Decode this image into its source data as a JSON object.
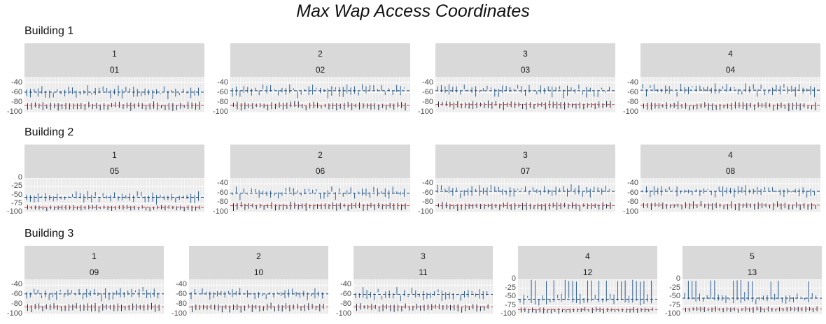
{
  "title": "Max Wap Access Coordinates",
  "colors": {
    "strip_bg": "#d9d9d9",
    "panel_bg": "#ebebeb",
    "grid": "#ffffff",
    "segment_blue": "#2c5d8f",
    "segment_dark": "#1a2b3c",
    "hline_blue": "#0b3c73",
    "hline_red": "#e0484f"
  },
  "chart_data": {
    "type": "faceted segment chart",
    "facet_rows": [
      "Building 1",
      "Building 2",
      "Building 3"
    ],
    "buildings": [
      {
        "label": "Building 1",
        "panels": [
          {
            "floor": "1",
            "id": "01",
            "yticks": [
              -40,
              -60,
              -80,
              -100
            ],
            "ylim": [
              -100,
              -28
            ],
            "hline_max": -59,
            "hline_min": -86
          },
          {
            "floor": "2",
            "id": "02",
            "yticks": [
              -40,
              -60,
              -80,
              -100
            ],
            "ylim": [
              -100,
              -28
            ],
            "hline_max": -56,
            "hline_min": -86
          },
          {
            "floor": "3",
            "id": "03",
            "yticks": [
              -40,
              -60,
              -80,
              -100
            ],
            "ylim": [
              -100,
              -28
            ],
            "hline_max": -56,
            "hline_min": -84
          },
          {
            "floor": "4",
            "id": "04",
            "yticks": [
              -40,
              -60,
              -80,
              -100
            ],
            "ylim": [
              -100,
              -28
            ],
            "hline_max": -55,
            "hline_min": -86
          }
        ]
      },
      {
        "label": "Building 2",
        "panels": [
          {
            "floor": "1",
            "id": "05",
            "yticks": [
              0,
              -25,
              -50,
              -75,
              -100
            ],
            "ylim": [
              -100,
              0
            ],
            "hline_max": -56,
            "hline_min": -86
          },
          {
            "floor": "2",
            "id": "06",
            "yticks": [
              -40,
              -60,
              -80,
              -100
            ],
            "ylim": [
              -100,
              -28
            ],
            "hline_max": -60,
            "hline_min": -86
          },
          {
            "floor": "3",
            "id": "07",
            "yticks": [
              -40,
              -60,
              -80,
              -100
            ],
            "ylim": [
              -100,
              -28
            ],
            "hline_max": -56,
            "hline_min": -86
          },
          {
            "floor": "4",
            "id": "08",
            "yticks": [
              -40,
              -60,
              -80,
              -100
            ],
            "ylim": [
              -100,
              -28
            ],
            "hline_max": -56,
            "hline_min": -85
          }
        ]
      },
      {
        "label": "Building 3",
        "panels": [
          {
            "floor": "1",
            "id": "09",
            "yticks": [
              -40,
              -60,
              -80,
              -100
            ],
            "ylim": [
              -100,
              -28
            ],
            "hline_max": -58,
            "hline_min": -85
          },
          {
            "floor": "2",
            "id": "10",
            "yticks": [
              -40,
              -60,
              -80,
              -100
            ],
            "ylim": [
              -100,
              -28
            ],
            "hline_max": -58,
            "hline_min": -85
          },
          {
            "floor": "3",
            "id": "11",
            "yticks": [
              -40,
              -60,
              -80,
              -100
            ],
            "ylim": [
              -100,
              -28
            ],
            "hline_max": -59,
            "hline_min": -85
          },
          {
            "floor": "4",
            "id": "12",
            "yticks": [
              0,
              -25,
              -50,
              -75,
              -100
            ],
            "ylim": [
              -100,
              0
            ],
            "hline_max": -57,
            "hline_min": -87
          },
          {
            "floor": "5",
            "id": "13",
            "yticks": [
              0,
              -25,
              -50,
              -75,
              -100
            ],
            "ylim": [
              -100,
              0
            ],
            "hline_max": -54,
            "hline_min": -85
          }
        ]
      }
    ]
  }
}
